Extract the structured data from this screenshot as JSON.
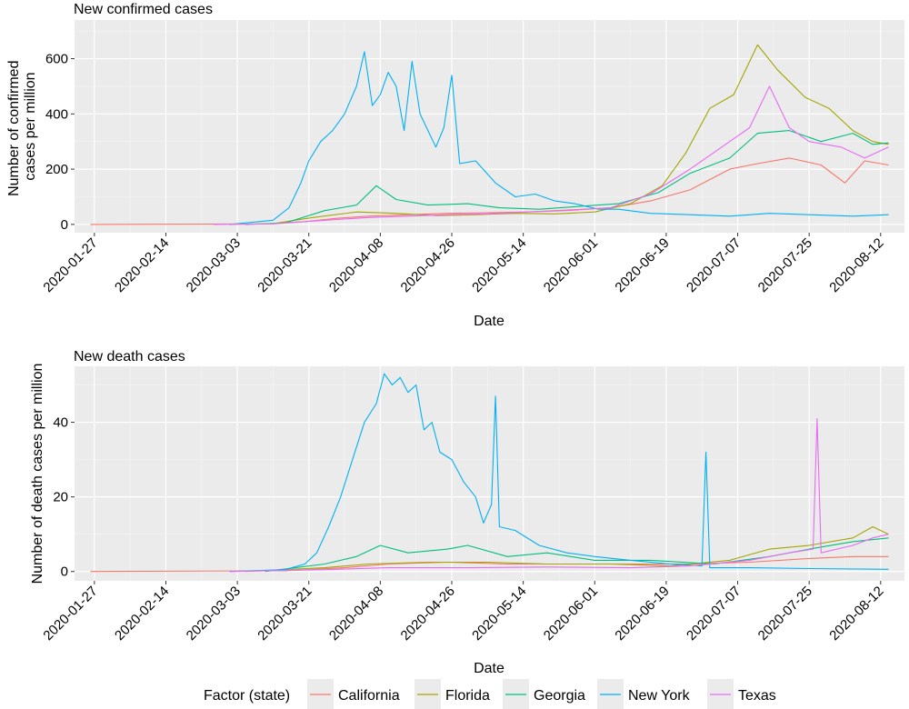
{
  "figure": {
    "legend": {
      "title": "Factor (state)",
      "position": "bottom"
    },
    "series_colors": {
      "California": "#F8766D",
      "Florida": "#A3A500",
      "Georgia": "#00BF7D",
      "New York": "#00B0F6",
      "Texas": "#E76BF3"
    }
  },
  "chart_data": [
    {
      "type": "line",
      "title": "New confirmed cases",
      "xlabel": "Date",
      "ylabel": "Number of confirmed cases per million",
      "ylabel_lines": [
        "Number of confirmed",
        "cases per million"
      ],
      "xlim": [
        "2020-01-22",
        "2020-08-18"
      ],
      "ylim": [
        -30,
        740
      ],
      "x_ticks": [
        "2020-01-27",
        "2020-02-14",
        "2020-03-03",
        "2020-03-21",
        "2020-04-08",
        "2020-04-26",
        "2020-05-14",
        "2020-06-01",
        "2020-06-19",
        "2020-07-07",
        "2020-07-25",
        "2020-08-12"
      ],
      "y_ticks": [
        0,
        200,
        400,
        600
      ],
      "grid": true,
      "series": [
        {
          "name": "California",
          "points": [
            [
              "2020-01-26",
              0
            ],
            [
              "2020-03-10",
              2
            ],
            [
              "2020-03-20",
              10
            ],
            [
              "2020-03-28",
              22
            ],
            [
              "2020-04-05",
              30
            ],
            [
              "2020-04-15",
              35
            ],
            [
              "2020-04-25",
              40
            ],
            [
              "2020-05-05",
              42
            ],
            [
              "2020-05-15",
              45
            ],
            [
              "2020-05-25",
              52
            ],
            [
              "2020-06-05",
              60
            ],
            [
              "2020-06-15",
              85
            ],
            [
              "2020-06-25",
              125
            ],
            [
              "2020-07-05",
              200
            ],
            [
              "2020-07-12",
              220
            ],
            [
              "2020-07-20",
              240
            ],
            [
              "2020-07-28",
              215
            ],
            [
              "2020-08-03",
              150
            ],
            [
              "2020-08-08",
              230
            ],
            [
              "2020-08-14",
              215
            ]
          ]
        },
        {
          "name": "Florida",
          "points": [
            [
              "2020-03-01",
              0
            ],
            [
              "2020-03-12",
              3
            ],
            [
              "2020-03-22",
              25
            ],
            [
              "2020-04-02",
              45
            ],
            [
              "2020-04-12",
              40
            ],
            [
              "2020-04-22",
              32
            ],
            [
              "2020-05-02",
              35
            ],
            [
              "2020-05-12",
              40
            ],
            [
              "2020-05-22",
              38
            ],
            [
              "2020-06-01",
              45
            ],
            [
              "2020-06-10",
              75
            ],
            [
              "2020-06-18",
              140
            ],
            [
              "2020-06-24",
              260
            ],
            [
              "2020-06-30",
              420
            ],
            [
              "2020-07-06",
              470
            ],
            [
              "2020-07-12",
              650
            ],
            [
              "2020-07-17",
              560
            ],
            [
              "2020-07-24",
              460
            ],
            [
              "2020-07-30",
              420
            ],
            [
              "2020-08-05",
              340
            ],
            [
              "2020-08-10",
              300
            ],
            [
              "2020-08-14",
              290
            ]
          ]
        },
        {
          "name": "Georgia",
          "points": [
            [
              "2020-03-05",
              0
            ],
            [
              "2020-03-15",
              5
            ],
            [
              "2020-03-25",
              50
            ],
            [
              "2020-04-02",
              70
            ],
            [
              "2020-04-07",
              140
            ],
            [
              "2020-04-12",
              90
            ],
            [
              "2020-04-20",
              70
            ],
            [
              "2020-04-30",
              75
            ],
            [
              "2020-05-08",
              60
            ],
            [
              "2020-05-18",
              55
            ],
            [
              "2020-05-28",
              65
            ],
            [
              "2020-06-07",
              75
            ],
            [
              "2020-06-17",
              115
            ],
            [
              "2020-06-25",
              185
            ],
            [
              "2020-07-05",
              240
            ],
            [
              "2020-07-12",
              330
            ],
            [
              "2020-07-20",
              340
            ],
            [
              "2020-07-28",
              300
            ],
            [
              "2020-08-05",
              330
            ],
            [
              "2020-08-10",
              290
            ],
            [
              "2020-08-14",
              295
            ]
          ]
        },
        {
          "name": "New York",
          "points": [
            [
              "2020-03-01",
              0
            ],
            [
              "2020-03-12",
              15
            ],
            [
              "2020-03-16",
              60
            ],
            [
              "2020-03-19",
              150
            ],
            [
              "2020-03-21",
              230
            ],
            [
              "2020-03-24",
              300
            ],
            [
              "2020-03-27",
              340
            ],
            [
              "2020-03-30",
              400
            ],
            [
              "2020-04-02",
              500
            ],
            [
              "2020-04-04",
              625
            ],
            [
              "2020-04-06",
              430
            ],
            [
              "2020-04-08",
              470
            ],
            [
              "2020-04-10",
              550
            ],
            [
              "2020-04-12",
              500
            ],
            [
              "2020-04-14",
              340
            ],
            [
              "2020-04-16",
              590
            ],
            [
              "2020-04-18",
              400
            ],
            [
              "2020-04-20",
              340
            ],
            [
              "2020-04-22",
              280
            ],
            [
              "2020-04-24",
              350
            ],
            [
              "2020-04-26",
              540
            ],
            [
              "2020-04-28",
              220
            ],
            [
              "2020-05-02",
              230
            ],
            [
              "2020-05-07",
              150
            ],
            [
              "2020-05-12",
              100
            ],
            [
              "2020-05-17",
              110
            ],
            [
              "2020-05-22",
              85
            ],
            [
              "2020-05-27",
              75
            ],
            [
              "2020-06-02",
              55
            ],
            [
              "2020-06-07",
              55
            ],
            [
              "2020-06-15",
              40
            ],
            [
              "2020-06-25",
              35
            ],
            [
              "2020-07-05",
              30
            ],
            [
              "2020-07-15",
              40
            ],
            [
              "2020-07-25",
              35
            ],
            [
              "2020-08-05",
              30
            ],
            [
              "2020-08-14",
              35
            ]
          ]
        },
        {
          "name": "Texas",
          "points": [
            [
              "2020-02-26",
              0
            ],
            [
              "2020-03-12",
              2
            ],
            [
              "2020-03-25",
              15
            ],
            [
              "2020-04-05",
              25
            ],
            [
              "2020-04-15",
              30
            ],
            [
              "2020-04-25",
              35
            ],
            [
              "2020-05-05",
              38
            ],
            [
              "2020-05-15",
              45
            ],
            [
              "2020-05-25",
              50
            ],
            [
              "2020-06-05",
              60
            ],
            [
              "2020-06-15",
              110
            ],
            [
              "2020-06-25",
              200
            ],
            [
              "2020-07-05",
              300
            ],
            [
              "2020-07-10",
              350
            ],
            [
              "2020-07-15",
              500
            ],
            [
              "2020-07-20",
              350
            ],
            [
              "2020-07-25",
              300
            ],
            [
              "2020-08-02",
              280
            ],
            [
              "2020-08-08",
              240
            ],
            [
              "2020-08-14",
              280
            ]
          ]
        }
      ]
    },
    {
      "type": "line",
      "title": "New death cases",
      "xlabel": "Date",
      "ylabel": "Number of death cases per million",
      "ylabel_lines": [
        "Number of death cases per million"
      ],
      "xlim": [
        "2020-01-22",
        "2020-08-18"
      ],
      "ylim": [
        -2.5,
        55
      ],
      "x_ticks": [
        "2020-01-27",
        "2020-02-14",
        "2020-03-03",
        "2020-03-21",
        "2020-04-08",
        "2020-04-26",
        "2020-05-14",
        "2020-06-01",
        "2020-06-19",
        "2020-07-07",
        "2020-07-25",
        "2020-08-12"
      ],
      "y_ticks": [
        0,
        20,
        40
      ],
      "grid": true,
      "series": [
        {
          "name": "California",
          "points": [
            [
              "2020-01-26",
              0
            ],
            [
              "2020-03-15",
              0.2
            ],
            [
              "2020-03-30",
              1
            ],
            [
              "2020-04-10",
              2
            ],
            [
              "2020-04-25",
              2.5
            ],
            [
              "2020-05-10",
              2
            ],
            [
              "2020-05-25",
              2
            ],
            [
              "2020-06-10",
              2
            ],
            [
              "2020-06-25",
              2
            ],
            [
              "2020-07-10",
              2.5
            ],
            [
              "2020-07-25",
              3.5
            ],
            [
              "2020-08-05",
              4
            ],
            [
              "2020-08-14",
              4
            ]
          ]
        },
        {
          "name": "Florida",
          "points": [
            [
              "2020-03-05",
              0
            ],
            [
              "2020-03-25",
              1
            ],
            [
              "2020-04-05",
              2
            ],
            [
              "2020-04-20",
              2.5
            ],
            [
              "2020-05-05",
              2.5
            ],
            [
              "2020-05-20",
              2
            ],
            [
              "2020-06-05",
              2
            ],
            [
              "2020-06-20",
              1.5
            ],
            [
              "2020-07-05",
              3
            ],
            [
              "2020-07-15",
              6
            ],
            [
              "2020-07-25",
              7
            ],
            [
              "2020-08-05",
              9
            ],
            [
              "2020-08-10",
              12
            ],
            [
              "2020-08-14",
              10
            ]
          ]
        },
        {
          "name": "Georgia",
          "points": [
            [
              "2020-03-10",
              0
            ],
            [
              "2020-03-25",
              2
            ],
            [
              "2020-04-02",
              4
            ],
            [
              "2020-04-08",
              7
            ],
            [
              "2020-04-15",
              5
            ],
            [
              "2020-04-25",
              6
            ],
            [
              "2020-04-30",
              7
            ],
            [
              "2020-05-10",
              4
            ],
            [
              "2020-05-20",
              5
            ],
            [
              "2020-06-01",
              3
            ],
            [
              "2020-06-15",
              3
            ],
            [
              "2020-07-01",
              2
            ],
            [
              "2020-07-15",
              4
            ],
            [
              "2020-07-25",
              6
            ],
            [
              "2020-08-05",
              8
            ],
            [
              "2020-08-14",
              9
            ]
          ]
        },
        {
          "name": "New York",
          "points": [
            [
              "2020-03-01",
              0
            ],
            [
              "2020-03-15",
              0.5
            ],
            [
              "2020-03-20",
              2
            ],
            [
              "2020-03-23",
              5
            ],
            [
              "2020-03-26",
              12
            ],
            [
              "2020-03-29",
              20
            ],
            [
              "2020-04-01",
              30
            ],
            [
              "2020-04-04",
              40
            ],
            [
              "2020-04-07",
              45
            ],
            [
              "2020-04-09",
              53
            ],
            [
              "2020-04-11",
              50
            ],
            [
              "2020-04-13",
              52
            ],
            [
              "2020-04-15",
              48
            ],
            [
              "2020-04-17",
              50
            ],
            [
              "2020-04-19",
              38
            ],
            [
              "2020-04-21",
              40
            ],
            [
              "2020-04-23",
              32
            ],
            [
              "2020-04-26",
              30
            ],
            [
              "2020-04-29",
              24
            ],
            [
              "2020-05-02",
              20
            ],
            [
              "2020-05-04",
              13
            ],
            [
              "2020-05-06",
              18
            ],
            [
              "2020-05-07",
              47
            ],
            [
              "2020-05-08",
              12
            ],
            [
              "2020-05-12",
              11
            ],
            [
              "2020-05-18",
              7
            ],
            [
              "2020-05-25",
              5
            ],
            [
              "2020-06-01",
              4
            ],
            [
              "2020-06-10",
              3
            ],
            [
              "2020-06-20",
              2
            ],
            [
              "2020-06-28",
              1.5
            ],
            [
              "2020-06-29",
              32
            ],
            [
              "2020-06-30",
              1
            ],
            [
              "2020-07-10",
              1
            ],
            [
              "2020-07-25",
              0.8
            ],
            [
              "2020-08-14",
              0.6
            ]
          ]
        },
        {
          "name": "Texas",
          "points": [
            [
              "2020-03-01",
              0
            ],
            [
              "2020-03-25",
              0.5
            ],
            [
              "2020-04-10",
              1
            ],
            [
              "2020-04-30",
              1
            ],
            [
              "2020-05-20",
              1.2
            ],
            [
              "2020-06-10",
              1
            ],
            [
              "2020-06-25",
              1.5
            ],
            [
              "2020-07-10",
              3
            ],
            [
              "2020-07-20",
              5
            ],
            [
              "2020-07-26",
              6
            ],
            [
              "2020-07-27",
              41
            ],
            [
              "2020-07-28",
              5
            ],
            [
              "2020-08-05",
              7
            ],
            [
              "2020-08-10",
              9
            ],
            [
              "2020-08-14",
              10
            ]
          ]
        }
      ]
    }
  ]
}
